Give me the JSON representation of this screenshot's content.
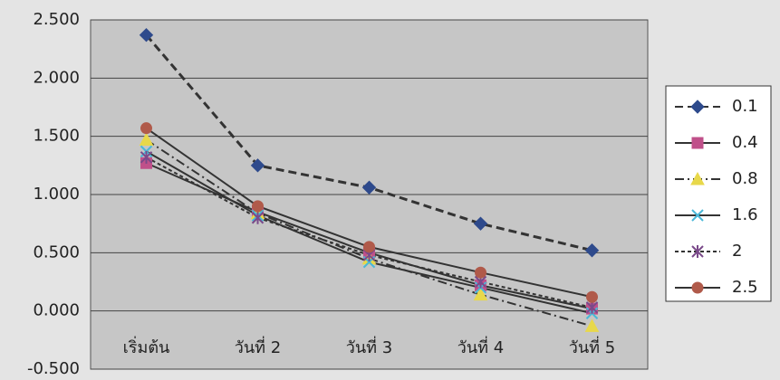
{
  "chart_data": {
    "type": "line",
    "categories": [
      "เริ่มต้น",
      "วันที่ 2",
      "วันที่ 3",
      "วันที่ 4",
      "วันที่ 5"
    ],
    "ylim": [
      -0.5,
      2.5
    ],
    "yticks": [
      {
        "value": -0.5,
        "label": "-0.500"
      },
      {
        "value": 0,
        "label": "0.000"
      },
      {
        "value": 0.5,
        "label": "0.500"
      },
      {
        "value": 1,
        "label": "1.000"
      },
      {
        "value": 1.5,
        "label": "1.500"
      },
      {
        "value": 2,
        "label": "2.000"
      },
      {
        "value": 2.5,
        "label": "2.500"
      }
    ],
    "grid": true,
    "legend": "right",
    "line_color": "#333333",
    "series": [
      {
        "name": "0.1",
        "color": "#2e4a8c",
        "marker": "diamond",
        "dash": "9 5",
        "values": [
          2.37,
          1.25,
          1.06,
          0.75,
          0.52
        ]
      },
      {
        "name": "0.4",
        "color": "#c0508a",
        "marker": "square",
        "dash": "none",
        "values": [
          1.27,
          0.85,
          0.5,
          0.22,
          0.02
        ]
      },
      {
        "name": "0.8",
        "color": "#e8d84a",
        "marker": "triangle",
        "dash": "10 4 2 4",
        "values": [
          1.47,
          0.84,
          0.45,
          0.14,
          -0.13
        ]
      },
      {
        "name": "1.6",
        "color": "#4ab8d8",
        "marker": "x",
        "dash": "none",
        "values": [
          1.37,
          0.82,
          0.42,
          0.2,
          -0.02
        ]
      },
      {
        "name": "2",
        "color": "#7a4a8a",
        "marker": "star",
        "dash": "4 3",
        "values": [
          1.32,
          0.8,
          0.48,
          0.25,
          0.03
        ]
      },
      {
        "name": "2.5",
        "color": "#b05a4a",
        "marker": "circle",
        "dash": "none",
        "values": [
          1.57,
          0.9,
          0.55,
          0.33,
          0.12
        ]
      }
    ]
  }
}
